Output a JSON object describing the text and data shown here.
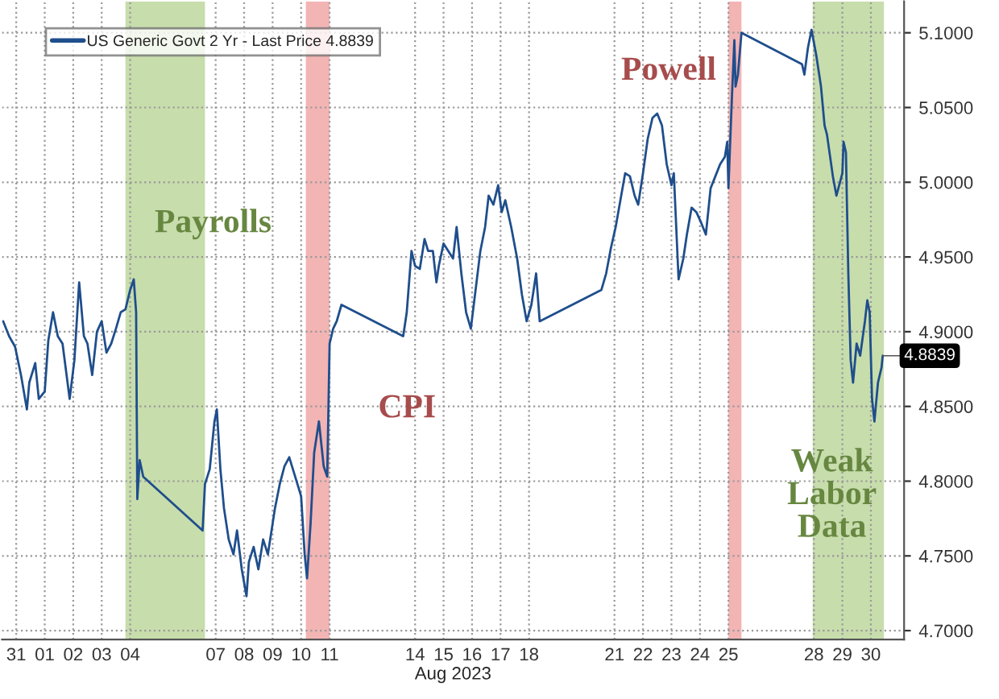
{
  "chart_data": {
    "type": "line",
    "xlabel": "Aug 2023",
    "xlim": [
      "2023-07-31T00:00",
      "2023-08-31T16:00"
    ],
    "xticks": [
      {
        "value": "2023-07-31T12:00",
        "label": "31"
      },
      {
        "value": "2023-08-01T12:00",
        "label": "01"
      },
      {
        "value": "2023-08-02T12:00",
        "label": "02"
      },
      {
        "value": "2023-08-03T12:00",
        "label": "03"
      },
      {
        "value": "2023-08-04T12:00",
        "label": "04"
      },
      {
        "value": "2023-08-07T12:00",
        "label": "07"
      },
      {
        "value": "2023-08-08T12:00",
        "label": "08"
      },
      {
        "value": "2023-08-09T12:00",
        "label": "09"
      },
      {
        "value": "2023-08-10T12:00",
        "label": "10"
      },
      {
        "value": "2023-08-11T12:00",
        "label": "11"
      },
      {
        "value": "2023-08-14T12:00",
        "label": "14"
      },
      {
        "value": "2023-08-15T12:00",
        "label": "15"
      },
      {
        "value": "2023-08-16T12:00",
        "label": "16"
      },
      {
        "value": "2023-08-17T12:00",
        "label": "17"
      },
      {
        "value": "2023-08-18T12:00",
        "label": "18"
      },
      {
        "value": "2023-08-21T12:00",
        "label": "21"
      },
      {
        "value": "2023-08-22T12:00",
        "label": "22"
      },
      {
        "value": "2023-08-23T12:00",
        "label": "23"
      },
      {
        "value": "2023-08-24T12:00",
        "label": "24"
      },
      {
        "value": "2023-08-25T12:00",
        "label": "25"
      },
      {
        "value": "2023-08-28T12:00",
        "label": "28"
      },
      {
        "value": "2023-08-29T12:00",
        "label": "29"
      },
      {
        "value": "2023-08-30T12:00",
        "label": "30"
      }
    ],
    "ylim": [
      4.694,
      5.121
    ],
    "yticks": [
      {
        "value": 4.7,
        "label": "4.7000"
      },
      {
        "value": 4.75,
        "label": "4.7500"
      },
      {
        "value": 4.8,
        "label": "4.8000"
      },
      {
        "value": 4.85,
        "label": "4.8500"
      },
      {
        "value": 4.9,
        "label": "4.9000"
      },
      {
        "value": 4.95,
        "label": "4.9500"
      },
      {
        "value": 5.0,
        "label": "5.0000"
      },
      {
        "value": 5.05,
        "label": "5.0500"
      },
      {
        "value": 5.1,
        "label": "5.1000"
      }
    ],
    "grid": true,
    "legend": "top left",
    "line_style": "solid",
    "marker": "none",
    "series": [
      {
        "name": "US Generic Govt 2 Yr - Last Price 4.8839",
        "color": "#1f4e8c",
        "x": [
          "2023-07-31T01:00",
          "2023-07-31T06:00",
          "2023-07-31T11:00",
          "2023-07-31T16:00",
          "2023-07-31T21:00",
          "2023-07-31T23:00",
          "2023-08-01T04:00",
          "2023-08-01T07:00",
          "2023-08-01T12:00",
          "2023-08-01T15:00",
          "2023-08-01T19:00",
          "2023-08-01T23:00",
          "2023-08-02T03:00",
          "2023-08-02T09:00",
          "2023-08-02T13:00",
          "2023-08-02T17:00",
          "2023-08-02T21:00",
          "2023-08-03T00:00",
          "2023-08-03T04:00",
          "2023-08-03T08:00",
          "2023-08-03T12:00",
          "2023-08-03T16:00",
          "2023-08-03T20:00",
          "2023-08-04T00:00",
          "2023-08-04T04:00",
          "2023-08-04T08:00",
          "2023-08-04T12:00",
          "2023-08-04T15:00",
          "2023-08-04T17:00",
          "2023-08-04T18:00",
          "2023-08-04T20:00",
          "2023-08-04T23:00",
          "2023-08-07T01:00",
          "2023-08-07T03:00",
          "2023-08-07T07:00",
          "2023-08-07T11:00",
          "2023-08-07T13:00",
          "2023-08-07T16:00",
          "2023-08-07T19:00",
          "2023-08-07T23:00",
          "2023-08-08T03:00",
          "2023-08-08T06:00",
          "2023-08-08T10:00",
          "2023-08-08T14:00",
          "2023-08-08T16:00",
          "2023-08-08T20:00",
          "2023-08-09T00:00",
          "2023-08-09T04:00",
          "2023-08-09T08:00",
          "2023-08-09T14:00",
          "2023-08-09T18:00",
          "2023-08-09T22:00",
          "2023-08-10T02:00",
          "2023-08-10T07:00",
          "2023-08-10T12:00",
          "2023-08-10T15:00",
          "2023-08-10T17:00",
          "2023-08-10T20:00",
          "2023-08-10T23:00",
          "2023-08-11T03:00",
          "2023-08-11T07:00",
          "2023-08-11T10:00",
          "2023-08-11T12:00",
          "2023-08-11T15:00",
          "2023-08-11T18:00",
          "2023-08-11T22:00",
          "2023-08-14T02:00",
          "2023-08-14T05:00",
          "2023-08-14T09:00",
          "2023-08-14T12:00",
          "2023-08-14T16:00",
          "2023-08-14T20:00",
          "2023-08-14T23:00",
          "2023-08-15T03:00",
          "2023-08-15T06:00",
          "2023-08-15T08:00",
          "2023-08-15T12:00",
          "2023-08-15T16:00",
          "2023-08-15T20:00",
          "2023-08-15T23:00",
          "2023-08-16T03:00",
          "2023-08-16T07:00",
          "2023-08-16T11:00",
          "2023-08-16T15:00",
          "2023-08-16T19:00",
          "2023-08-16T23:00",
          "2023-08-17T02:00",
          "2023-08-17T06:00",
          "2023-08-17T10:00",
          "2023-08-17T13:00",
          "2023-08-17T16:00",
          "2023-08-17T21:00",
          "2023-08-18T02:00",
          "2023-08-18T06:00",
          "2023-08-18T10:00",
          "2023-08-18T14:00",
          "2023-08-18T18:00",
          "2023-08-18T21:00",
          "2023-08-21T01:00",
          "2023-08-21T05:00",
          "2023-08-21T09:00",
          "2023-08-21T13:00",
          "2023-08-21T17:00",
          "2023-08-21T21:00",
          "2023-08-22T01:00",
          "2023-08-22T05:00",
          "2023-08-22T08:00",
          "2023-08-22T12:00",
          "2023-08-22T16:00",
          "2023-08-22T20:00",
          "2023-08-23T00:00",
          "2023-08-23T04:00",
          "2023-08-23T08:00",
          "2023-08-23T12:00",
          "2023-08-23T14:00",
          "2023-08-23T18:00",
          "2023-08-23T22:00",
          "2023-08-24T01:00",
          "2023-08-24T05:00",
          "2023-08-24T09:00",
          "2023-08-24T13:00",
          "2023-08-24T17:00",
          "2023-08-24T21:00",
          "2023-08-25T01:00",
          "2023-08-25T05:00",
          "2023-08-25T09:00",
          "2023-08-25T11:00",
          "2023-08-25T12:00",
          "2023-08-25T15:00",
          "2023-08-25T17:00",
          "2023-08-25T18:00",
          "2023-08-25T20:00",
          "2023-08-25T23:00",
          "2023-08-28T02:00",
          "2023-08-28T04:00",
          "2023-08-28T07:00",
          "2023-08-28T10:00",
          "2023-08-28T14:00",
          "2023-08-28T18:00",
          "2023-08-28T21:00",
          "2023-08-28T23:00",
          "2023-08-29T04:00",
          "2023-08-29T07:00",
          "2023-08-29T12:00",
          "2023-08-29T13:00",
          "2023-08-29T15:00",
          "2023-08-29T17:00",
          "2023-08-29T19:00",
          "2023-08-29T21:00",
          "2023-08-30T00:00",
          "2023-08-30T03:00",
          "2023-08-30T07:00",
          "2023-08-30T09:00",
          "2023-08-30T11:00",
          "2023-08-30T13:00",
          "2023-08-30T15:00",
          "2023-08-30T18:00",
          "2023-08-30T21:00",
          "2023-08-30T22:00"
        ],
        "values": [
          4.907,
          4.897,
          4.89,
          4.871,
          4.848,
          4.866,
          4.879,
          4.855,
          4.86,
          4.894,
          4.913,
          4.897,
          4.892,
          4.855,
          4.881,
          4.933,
          4.897,
          4.892,
          4.871,
          4.9,
          4.907,
          4.886,
          4.892,
          4.902,
          4.913,
          4.915,
          4.928,
          4.935,
          4.913,
          4.788,
          4.814,
          4.803,
          4.767,
          4.798,
          4.808,
          4.84,
          4.848,
          4.808,
          4.782,
          4.761,
          4.751,
          4.767,
          4.741,
          4.723,
          4.746,
          4.756,
          4.741,
          4.761,
          4.751,
          4.782,
          4.798,
          4.81,
          4.816,
          4.803,
          4.79,
          4.751,
          4.735,
          4.772,
          4.819,
          4.84,
          4.81,
          4.803,
          4.892,
          4.902,
          4.907,
          4.918,
          4.897,
          4.913,
          4.954,
          4.944,
          4.942,
          4.962,
          4.954,
          4.954,
          4.933,
          4.944,
          4.959,
          4.954,
          4.949,
          4.97,
          4.939,
          4.913,
          4.902,
          4.928,
          4.954,
          4.97,
          4.991,
          4.985,
          4.998,
          4.98,
          4.988,
          4.97,
          4.949,
          4.925,
          4.907,
          4.918,
          4.939,
          4.907,
          4.928,
          4.939,
          4.956,
          4.97,
          4.988,
          5.006,
          5.004,
          4.991,
          4.985,
          5.006,
          5.029,
          5.043,
          5.046,
          5.038,
          5.012,
          4.998,
          5.006,
          4.935,
          4.949,
          4.965,
          4.983,
          4.98,
          4.973,
          4.965,
          4.996,
          5.004,
          5.012,
          5.017,
          5.027,
          4.996,
          5.058,
          5.095,
          5.064,
          5.072,
          5.1,
          5.079,
          5.072,
          5.09,
          5.102,
          5.085,
          5.064,
          5.038,
          5.032,
          5.004,
          4.991,
          5.006,
          5.027,
          5.02,
          4.939,
          4.881,
          4.866,
          4.892,
          4.884,
          4.907,
          4.921,
          4.913,
          4.855,
          4.84,
          4.866,
          4.876,
          4.884
        ]
      }
    ],
    "bands": [
      {
        "axis": "x",
        "from": "2023-08-04T08:00",
        "to": "2023-08-07T03:00",
        "color": "#8fbc5a"
      },
      {
        "axis": "x",
        "from": "2023-08-10T16:00",
        "to": "2023-08-11T12:00",
        "color": "#e86a6a"
      },
      {
        "axis": "x",
        "from": "2023-08-25T12:00",
        "to": "2023-08-25T23:00",
        "color": "#e86a6a"
      },
      {
        "axis": "x",
        "from": "2023-08-28T11:00",
        "to": "2023-08-30T23:00",
        "color": "#8fbc5a"
      }
    ],
    "annotations": [
      "Payrolls",
      "CPI",
      "Powell",
      "Weak\nLabor\nData",
      {
        "text": "4.8839",
        "x": "2023-08-30T22:00",
        "y": 4.8839
      }
    ]
  }
}
